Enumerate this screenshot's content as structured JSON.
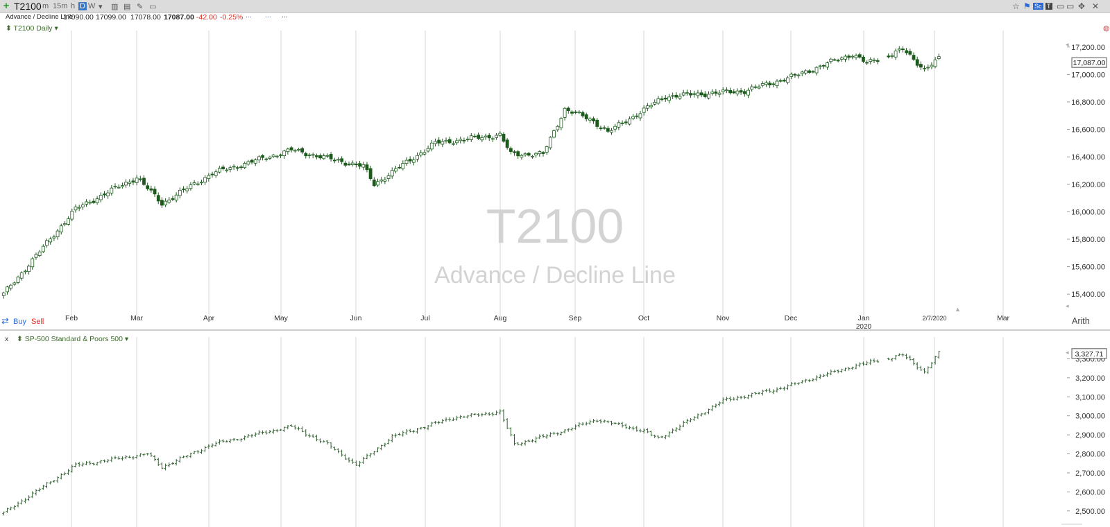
{
  "toolbar": {
    "symbol": "T2100",
    "timeframes": [
      "m",
      "15m",
      "h",
      "D",
      "W"
    ],
    "active_timeframe": "D",
    "icons": [
      "bar-chart-icon",
      "compare-icon",
      "draw-icon",
      "notes-icon"
    ],
    "right_icons": [
      "star-icon",
      "flag-icon",
      "sc-logo-icon",
      "tools-icon",
      "minimize-icon",
      "maximize-icon",
      "move-icon",
      "close-icon"
    ]
  },
  "infobar": {
    "name": "Advance / Decline Line",
    "open": "17090.00",
    "high": "17099.00",
    "low": "17078.00",
    "close": "17087.00",
    "change": "-42.00",
    "change_pct": "-0.25%"
  },
  "colors": {
    "candle": "#1d5b1d",
    "bar": "#2f5f2f",
    "grid": "#d7d7d7",
    "down": "#e0241b",
    "buy": "#2a6bd6"
  },
  "chart_data": [
    {
      "type": "candlestick",
      "title": "T2100 Daily",
      "watermark": "T2100",
      "watermark_sub": "Advance / Decline Line",
      "x_labels": [
        "Feb",
        "Mar",
        "Apr",
        "May",
        "Jun",
        "Jul",
        "Aug",
        "Sep",
        "Oct",
        "Nov",
        "Dec",
        "Jan",
        "2/7/2020",
        "Mar"
      ],
      "year_label": "2020",
      "ylim": [
        15320,
        17300
      ],
      "y_ticks": [
        "15,400.00",
        "15,600.00",
        "15,800.00",
        "16,000.00",
        "16,200.00",
        "16,400.00",
        "16,600.00",
        "16,800.00",
        "17,000.00",
        "17,200.00"
      ],
      "last_value": "17,087.00",
      "buy_label": "Buy",
      "sell_label": "Sell",
      "scale_label": "Arith",
      "close_anchors": [
        [
          0,
          15400
        ],
        [
          20,
          16020
        ],
        [
          37,
          16250
        ],
        [
          44,
          16060
        ],
        [
          58,
          16280
        ],
        [
          80,
          16450
        ],
        [
          100,
          16330
        ],
        [
          103,
          16200
        ],
        [
          120,
          16500
        ],
        [
          138,
          16560
        ],
        [
          141,
          16420
        ],
        [
          150,
          16420
        ],
        [
          156,
          16750
        ],
        [
          164,
          16660
        ],
        [
          168,
          16580
        ],
        [
          184,
          16840
        ],
        [
          206,
          16880
        ],
        [
          220,
          16990
        ],
        [
          236,
          17150
        ],
        [
          240,
          17080
        ],
        [
          250,
          17180
        ],
        [
          256,
          17040
        ],
        [
          260,
          17110
        ]
      ]
    },
    {
      "type": "ohlc",
      "title": "SP-500 Standard & Poors 500",
      "close_label": "x",
      "ylim": [
        2470,
        3400
      ],
      "y_ticks": [
        "2,500.00",
        "2,600.00",
        "2,700.00",
        "2,800.00",
        "2,900.00",
        "3,000.00",
        "3,100.00",
        "3,200.00",
        "3,300.00"
      ],
      "last_value": "3,327.71",
      "close_anchors": [
        [
          0,
          2490
        ],
        [
          20,
          2740
        ],
        [
          40,
          2800
        ],
        [
          44,
          2730
        ],
        [
          58,
          2850
        ],
        [
          80,
          2945
        ],
        [
          90,
          2850
        ],
        [
          98,
          2740
        ],
        [
          108,
          2890
        ],
        [
          125,
          2990
        ],
        [
          138,
          3020
        ],
        [
          142,
          2850
        ],
        [
          152,
          2900
        ],
        [
          165,
          2980
        ],
        [
          178,
          2920
        ],
        [
          182,
          2880
        ],
        [
          200,
          3080
        ],
        [
          215,
          3140
        ],
        [
          236,
          3260
        ],
        [
          250,
          3320
        ],
        [
          256,
          3230
        ],
        [
          260,
          3330
        ]
      ]
    }
  ]
}
